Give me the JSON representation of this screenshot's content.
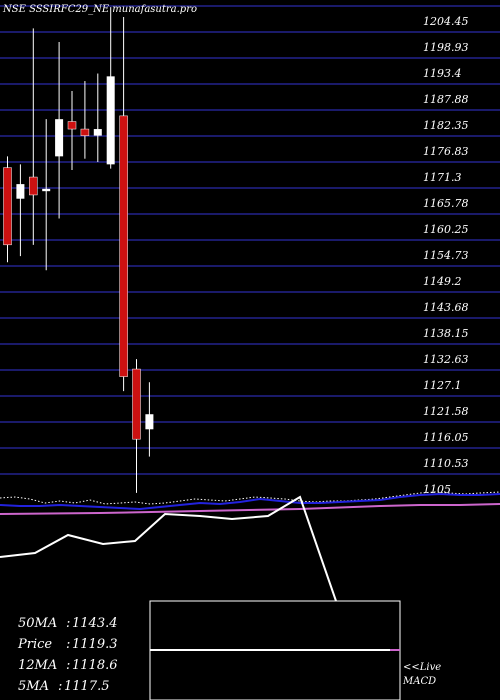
{
  "chart_data": {
    "type": "candlestick",
    "title": "NSE SSSIRFC29_NE munafasutra.pro",
    "y_ticks": [
      "1204.45",
      "1198.93",
      "1193.4",
      "1187.88",
      "1182.35",
      "1176.83",
      "1171.3",
      "1165.78",
      "1160.25",
      "1154.73",
      "1149.2",
      "1143.68",
      "1138.15",
      "1132.63",
      "1127.1",
      "1121.58",
      "1116.05",
      "1110.53",
      "1105"
    ],
    "ylim": [
      1105,
      1204.45
    ],
    "grid": true,
    "candles": [
      {
        "open": 1170.1,
        "close": 1153.7,
        "high": 1172.5,
        "low": 1150.0,
        "direction": "down"
      },
      {
        "open": 1163.5,
        "close": 1166.6,
        "high": 1170.8,
        "low": 1151.3,
        "direction": "up"
      },
      {
        "open": 1168.1,
        "close": 1164.3,
        "high": 1199.7,
        "low": 1153.7,
        "direction": "down"
      },
      {
        "open": 1165.1,
        "close": 1165.6,
        "high": 1180.4,
        "low": 1148.3,
        "direction": "up"
      },
      {
        "open": 1172.5,
        "close": 1180.4,
        "high": 1196.8,
        "low": 1159.3,
        "direction": "up"
      },
      {
        "open": 1179.9,
        "close": 1178.3,
        "high": 1186.4,
        "low": 1169.6,
        "direction": "down"
      },
      {
        "open": 1178.3,
        "close": 1176.9,
        "high": 1188.5,
        "low": 1172.0,
        "direction": "down"
      },
      {
        "open": 1176.9,
        "close": 1178.3,
        "high": 1190.1,
        "low": 1171.3,
        "direction": "up"
      },
      {
        "open": 1170.8,
        "close": 1189.5,
        "high": 1204.2,
        "low": 1169.9,
        "direction": "up"
      },
      {
        "open": 1181.1,
        "close": 1125.7,
        "high": 1202.1,
        "low": 1122.6,
        "direction": "down"
      },
      {
        "open": 1127.3,
        "close": 1112.4,
        "high": 1129.4,
        "low": 1101.0,
        "direction": "down"
      },
      {
        "open": 1114.5,
        "close": 1117.7,
        "high": 1124.5,
        "low": 1108.7,
        "direction": "up"
      }
    ],
    "info_labels": [
      {
        "name": "50MA",
        "value": "1143.4"
      },
      {
        "name": "Price",
        "value": "1119.3"
      },
      {
        "name": "12MA",
        "value": "1118.6"
      },
      {
        "name": "5MA",
        "value": "1117.5"
      }
    ],
    "macd_label_lines": [
      "<<Live",
      "MACD"
    ],
    "colors": {
      "background": "#000000",
      "grid": "#1a1a6a",
      "bull_candle": "#ffffff",
      "bear_candle": "#cc1111",
      "ma_line_blue": "#2222dd",
      "ma_line_pink": "#cc66cc",
      "ma_line_dotted": "#ffffff",
      "macd_line": "#ffffff",
      "macd_box_border": "#ffffff",
      "macd_signal": "#cc66cc"
    }
  }
}
